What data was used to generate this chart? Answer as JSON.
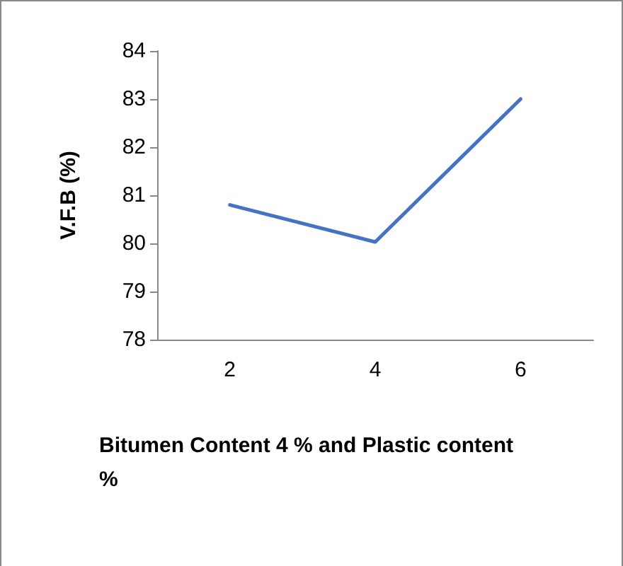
{
  "chart_data": {
    "type": "line",
    "xlabel": "Bitumen Content 4 % and Plastic content %",
    "ylabel": "V.F.B (%)",
    "categories": [
      "2",
      "4",
      "6"
    ],
    "series": [
      {
        "color": "#4472c4",
        "values": [
          80.8,
          80.03,
          83.0
        ]
      }
    ],
    "ylim": [
      78,
      84
    ],
    "yticks": [
      78,
      79,
      80,
      81,
      82,
      83,
      84
    ],
    "grid": false,
    "marker": "none",
    "line_style": "solid"
  }
}
